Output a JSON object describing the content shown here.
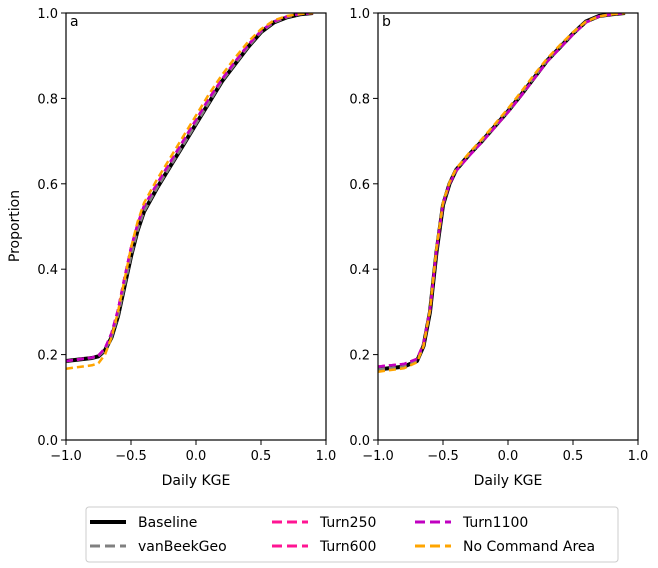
{
  "chart_data": [
    {
      "type": "line",
      "panel_label": "a",
      "xlabel": "Daily KGE",
      "ylabel": "Proportion",
      "xlim": [
        -1.0,
        1.0
      ],
      "ylim": [
        0.0,
        1.0
      ],
      "xticks": [
        "−1.0",
        "−0.5",
        "0.0",
        "0.5",
        "1.0"
      ],
      "yticks": [
        "0.0",
        "0.2",
        "0.4",
        "0.6",
        "0.8",
        "1.0"
      ],
      "x": [
        -1.0,
        -0.8,
        -0.75,
        -0.7,
        -0.65,
        -0.6,
        -0.55,
        -0.5,
        -0.45,
        -0.4,
        -0.3,
        -0.2,
        -0.1,
        0.0,
        0.1,
        0.2,
        0.3,
        0.4,
        0.5,
        0.6,
        0.7,
        0.8,
        0.9
      ],
      "series": [
        {
          "name": "Baseline",
          "values": [
            0.185,
            0.192,
            0.196,
            0.21,
            0.24,
            0.29,
            0.36,
            0.43,
            0.49,
            0.535,
            0.59,
            0.64,
            0.69,
            0.74,
            0.79,
            0.84,
            0.88,
            0.92,
            0.955,
            0.978,
            0.99,
            0.997,
            1.0
          ]
        },
        {
          "name": "vanBeekGeo",
          "values": [
            0.185,
            0.192,
            0.196,
            0.21,
            0.24,
            0.29,
            0.36,
            0.43,
            0.49,
            0.535,
            0.59,
            0.64,
            0.69,
            0.74,
            0.79,
            0.84,
            0.88,
            0.92,
            0.955,
            0.978,
            0.99,
            0.997,
            1.0
          ]
        },
        {
          "name": "Turn250",
          "values": [
            0.185,
            0.193,
            0.198,
            0.215,
            0.25,
            0.305,
            0.38,
            0.45,
            0.505,
            0.548,
            0.6,
            0.65,
            0.7,
            0.75,
            0.8,
            0.845,
            0.886,
            0.925,
            0.958,
            0.98,
            0.992,
            0.998,
            1.0
          ]
        },
        {
          "name": "Turn600",
          "values": [
            0.185,
            0.193,
            0.198,
            0.215,
            0.25,
            0.305,
            0.38,
            0.45,
            0.505,
            0.548,
            0.6,
            0.65,
            0.7,
            0.75,
            0.8,
            0.845,
            0.886,
            0.925,
            0.958,
            0.98,
            0.992,
            0.998,
            1.0
          ]
        },
        {
          "name": "Turn1100",
          "values": [
            0.185,
            0.193,
            0.198,
            0.215,
            0.25,
            0.305,
            0.38,
            0.45,
            0.505,
            0.548,
            0.6,
            0.65,
            0.7,
            0.75,
            0.8,
            0.845,
            0.886,
            0.925,
            0.958,
            0.98,
            0.992,
            0.998,
            1.0
          ]
        },
        {
          "name": "No Command Area",
          "values": [
            0.167,
            0.175,
            0.18,
            0.2,
            0.24,
            0.3,
            0.375,
            0.45,
            0.51,
            0.555,
            0.61,
            0.66,
            0.71,
            0.76,
            0.81,
            0.855,
            0.895,
            0.932,
            0.962,
            0.983,
            0.993,
            0.998,
            1.0
          ]
        }
      ]
    },
    {
      "type": "line",
      "panel_label": "b",
      "xlabel": "Daily KGE",
      "ylabel": "",
      "xlim": [
        -1.0,
        1.0
      ],
      "ylim": [
        0.0,
        1.0
      ],
      "xticks": [
        "−1.0",
        "−0.5",
        "0.0",
        "0.5",
        "1.0"
      ],
      "yticks": [
        "0.0",
        "0.2",
        "0.4",
        "0.6",
        "0.8",
        "1.0"
      ],
      "x": [
        -1.0,
        -0.8,
        -0.7,
        -0.65,
        -0.6,
        -0.55,
        -0.5,
        -0.45,
        -0.4,
        -0.3,
        -0.2,
        -0.1,
        0.0,
        0.1,
        0.2,
        0.3,
        0.4,
        0.5,
        0.6,
        0.7,
        0.8,
        0.9
      ],
      "series": [
        {
          "name": "Baseline",
          "values": [
            0.165,
            0.172,
            0.185,
            0.22,
            0.3,
            0.44,
            0.55,
            0.6,
            0.632,
            0.668,
            0.7,
            0.735,
            0.77,
            0.808,
            0.848,
            0.888,
            0.92,
            0.952,
            0.98,
            0.993,
            0.997,
            1.0
          ]
        },
        {
          "name": "vanBeekGeo",
          "values": [
            0.165,
            0.172,
            0.185,
            0.22,
            0.3,
            0.44,
            0.55,
            0.6,
            0.632,
            0.668,
            0.7,
            0.735,
            0.77,
            0.808,
            0.848,
            0.888,
            0.92,
            0.952,
            0.98,
            0.993,
            0.997,
            1.0
          ]
        },
        {
          "name": "Turn250",
          "values": [
            0.172,
            0.178,
            0.19,
            0.225,
            0.305,
            0.445,
            0.553,
            0.6,
            0.63,
            0.665,
            0.698,
            0.733,
            0.768,
            0.806,
            0.846,
            0.886,
            0.918,
            0.95,
            0.978,
            0.992,
            0.997,
            1.0
          ]
        },
        {
          "name": "Turn600",
          "values": [
            0.172,
            0.178,
            0.19,
            0.225,
            0.305,
            0.445,
            0.553,
            0.6,
            0.63,
            0.665,
            0.698,
            0.733,
            0.768,
            0.806,
            0.846,
            0.886,
            0.918,
            0.95,
            0.978,
            0.992,
            0.997,
            1.0
          ]
        },
        {
          "name": "Turn1100",
          "values": [
            0.172,
            0.178,
            0.19,
            0.225,
            0.305,
            0.445,
            0.553,
            0.6,
            0.63,
            0.665,
            0.698,
            0.733,
            0.768,
            0.806,
            0.846,
            0.886,
            0.918,
            0.95,
            0.978,
            0.992,
            0.997,
            1.0
          ]
        },
        {
          "name": "No Command Area",
          "values": [
            0.16,
            0.168,
            0.182,
            0.22,
            0.305,
            0.45,
            0.556,
            0.603,
            0.635,
            0.672,
            0.705,
            0.74,
            0.776,
            0.815,
            0.855,
            0.893,
            0.925,
            0.955,
            0.98,
            0.992,
            0.997,
            1.0
          ]
        }
      ]
    }
  ],
  "legend": {
    "placement": "bottom-center",
    "entries": [
      {
        "label": "Baseline",
        "color": "#000000",
        "style": "solid"
      },
      {
        "label": "vanBeekGeo",
        "color": "#808080",
        "style": "dashed"
      },
      {
        "label": "Turn250",
        "color": "#ff1493",
        "style": "dashed"
      },
      {
        "label": "Turn600",
        "color": "#ff1493",
        "style": "dashed"
      },
      {
        "label": "Turn1100",
        "color": "#c000c0",
        "style": "dashed"
      },
      {
        "label": "No Command Area",
        "color": "#ffa500",
        "style": "dashed"
      }
    ]
  }
}
